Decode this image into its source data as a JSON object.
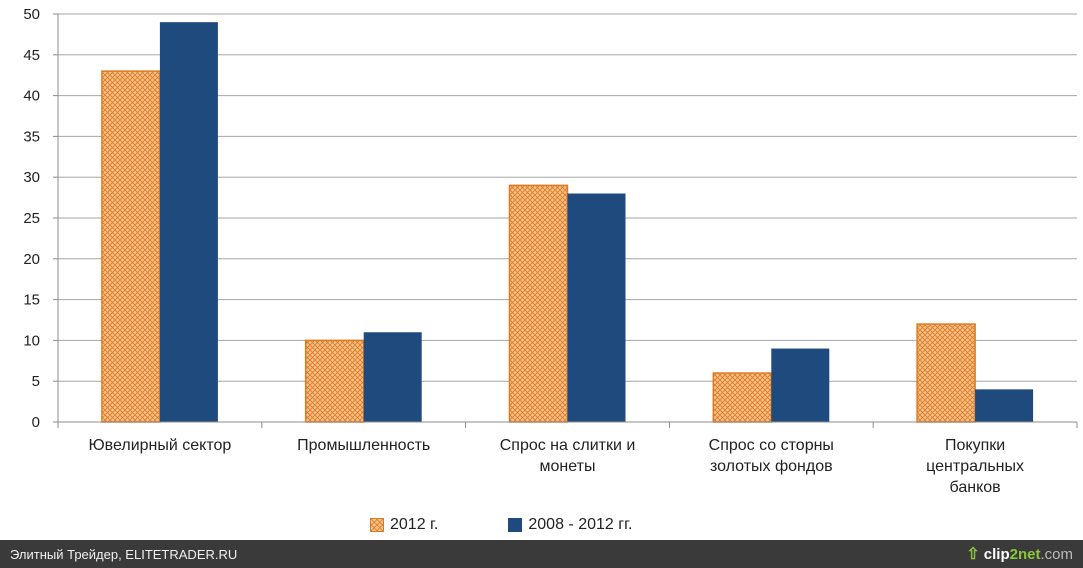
{
  "chart_data": {
    "type": "bar",
    "categories": [
      [
        "Ювелирный  сектор"
      ],
      [
        "Промышленность"
      ],
      [
        "Спрос на слитки и",
        "монеты"
      ],
      [
        "Спрос со сторны",
        "золотых фондов"
      ],
      [
        "Покупки",
        "центральных",
        "банков"
      ]
    ],
    "series": [
      {
        "name": "2012 г.",
        "values": [
          43,
          10,
          29,
          6,
          12
        ],
        "color": "#e07a1f",
        "fill": "#f6c28f"
      },
      {
        "name": "2008 - 2012 гг.",
        "values": [
          49,
          11,
          28,
          9,
          4
        ],
        "color": "#1f4a7d"
      }
    ],
    "ylim": [
      0,
      50
    ],
    "yticks": [
      "0",
      "5",
      "10",
      "15",
      "20",
      "25",
      "30",
      "35",
      "40",
      "45",
      "50"
    ],
    "grid": true,
    "legend_position": "bottom"
  },
  "footer": {
    "text": "Элитный Трейдер, ELITETRADER.RU",
    "brand_icon": "up-arrow-icon",
    "brand_a": "clip",
    "brand_b": "2net",
    "brand_c": ".com"
  }
}
